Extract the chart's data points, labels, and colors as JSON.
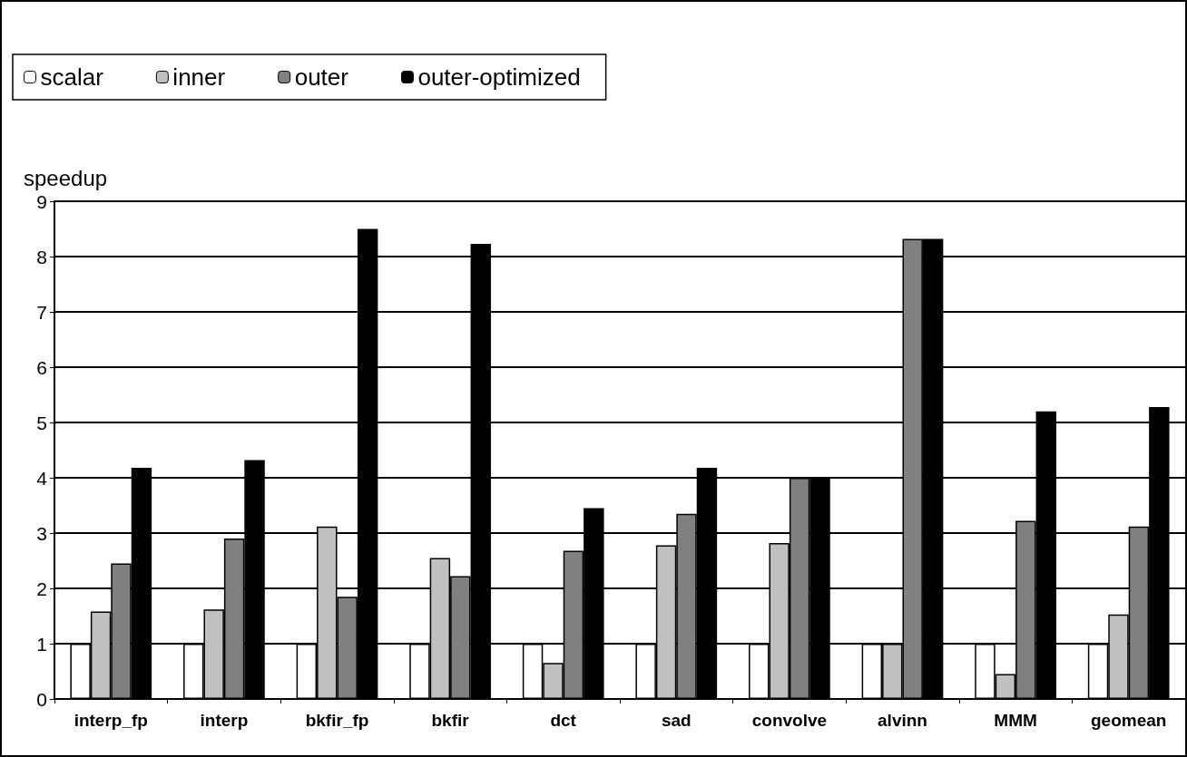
{
  "chart_data": {
    "type": "bar",
    "ylabel": "speedup",
    "categories": [
      "interp_fp",
      "interp",
      "bkfir_fp",
      "bkfir",
      "dct",
      "sad",
      "convolve",
      "alvinn",
      "MMM",
      "geomean"
    ],
    "series": [
      {
        "name": "scalar",
        "color": "#ffffff",
        "values": [
          1,
          1,
          1,
          1,
          1,
          1,
          1,
          1,
          1,
          1
        ]
      },
      {
        "name": "inner",
        "color": "#c0c0c0",
        "values": [
          1.58,
          1.62,
          3.12,
          2.55,
          0.65,
          2.78,
          2.82,
          1.0,
          0.45,
          1.53
        ]
      },
      {
        "name": "outer",
        "color": "#808080",
        "values": [
          2.45,
          2.9,
          1.85,
          2.22,
          2.68,
          3.35,
          4.0,
          8.32,
          3.22,
          3.12
        ]
      },
      {
        "name": "outer-optimized",
        "color": "#000000",
        "values": [
          4.18,
          4.32,
          8.5,
          8.23,
          3.45,
          4.18,
          4.0,
          8.32,
          5.2,
          5.28
        ]
      }
    ],
    "ylim": [
      0,
      9
    ],
    "yticks": [
      0,
      1,
      2,
      3,
      4,
      5,
      6,
      7,
      8,
      9
    ],
    "grid": "y",
    "legend": "top left"
  }
}
